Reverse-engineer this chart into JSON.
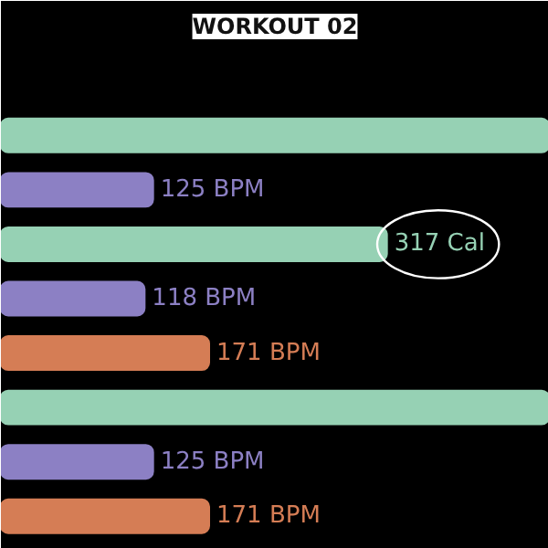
{
  "chart_data": {
    "type": "bar",
    "orientation": "horizontal",
    "title": "WORKOUT 02",
    "categories": [
      null,
      null,
      null,
      null,
      null,
      null,
      null,
      null
    ],
    "xlim": [
      0,
      450
    ],
    "values": [
      450,
      125,
      317,
      118,
      171,
      450,
      125,
      171
    ],
    "colors": [
      "#96d1b4",
      "#8c80c4",
      "#96d1b4",
      "#8c80c4",
      "#d57d55",
      "#96d1b4",
      "#8c80c4",
      "#d57d55"
    ],
    "value_labels": [
      null,
      "125 BPM",
      "317 Cal",
      "118 BPM",
      "171 BPM",
      null,
      "125 BPM",
      "171 BPM"
    ],
    "grid": false,
    "tick_labels": false
  }
}
